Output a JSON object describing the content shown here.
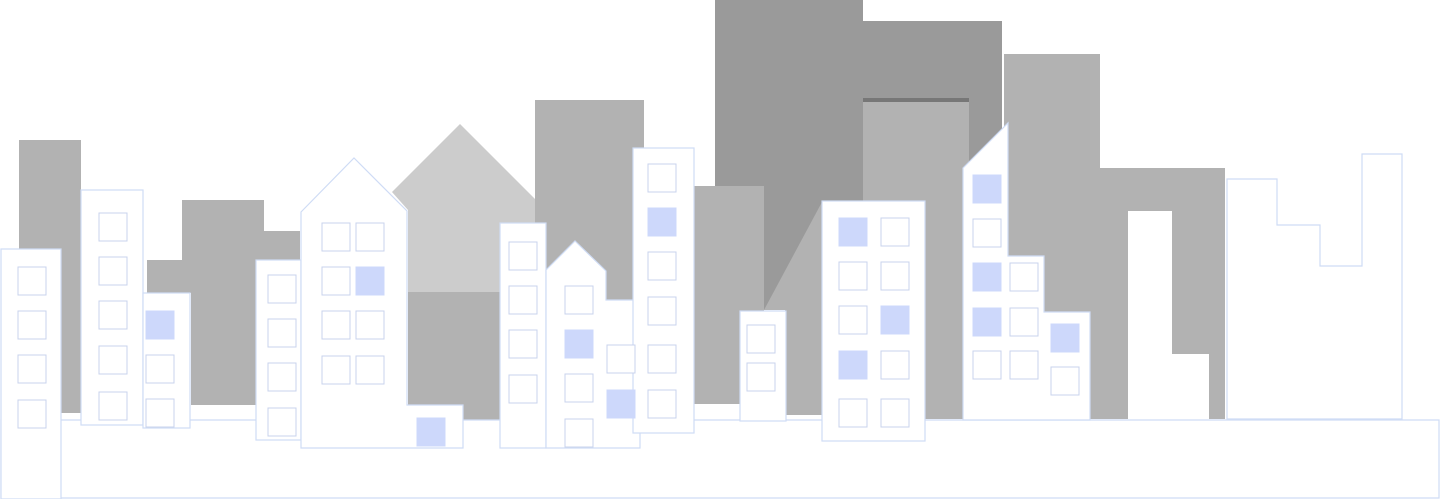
{
  "illustration": {
    "subject": "city-skyline",
    "colors": {
      "background": "#ffffff",
      "outline": "#cfdcf5",
      "window_frame": "#c9d3ec",
      "window_lit": "#cdd8fb",
      "gray_dark": "#9a9a9a",
      "gray_mid": "#b2b2b2",
      "gray_light": "#cccccc"
    }
  }
}
